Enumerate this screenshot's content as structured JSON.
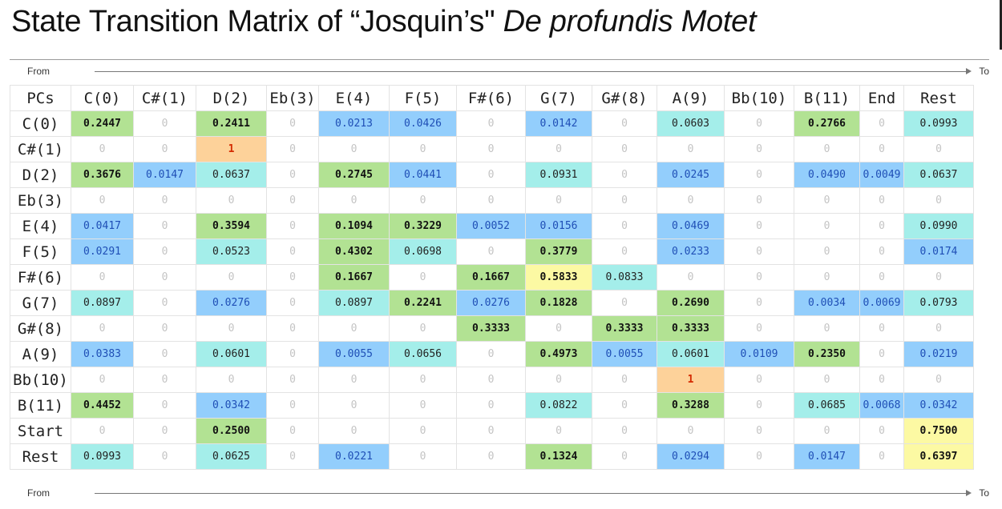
{
  "title": {
    "main": "State Transition Matrix of “Josquin’s\" ",
    "italic": "De profundis Motet"
  },
  "axis": {
    "from": "From",
    "to": "To"
  },
  "corner": "PCs",
  "columns": [
    "C(0)",
    "C#(1)",
    "D(2)",
    "Eb(3)",
    "E(4)",
    "F(5)",
    "F#(6)",
    "G(7)",
    "G#(8)",
    "A(9)",
    "Bb(10)",
    "B(11)",
    "End",
    "Rest"
  ],
  "rows": [
    {
      "label": "C(0)",
      "cells": [
        "0.2447",
        "0",
        "0.2411",
        "0",
        "0.0213",
        "0.0426",
        "0",
        "0.0142",
        "0",
        "0.0603",
        "0",
        "0.2766",
        "0",
        "0.0993"
      ]
    },
    {
      "label": "C#(1)",
      "cells": [
        "0",
        "0",
        "1",
        "0",
        "0",
        "0",
        "0",
        "0",
        "0",
        "0",
        "0",
        "0",
        "0",
        "0"
      ]
    },
    {
      "label": "D(2)",
      "cells": [
        "0.3676",
        "0.0147",
        "0.0637",
        "0",
        "0.2745",
        "0.0441",
        "0",
        "0.0931",
        "0",
        "0.0245",
        "0",
        "0.0490",
        "0.0049",
        "0.0637"
      ]
    },
    {
      "label": "Eb(3)",
      "cells": [
        "0",
        "0",
        "0",
        "0",
        "0",
        "0",
        "0",
        "0",
        "0",
        "0",
        "0",
        "0",
        "0",
        "0"
      ]
    },
    {
      "label": "E(4)",
      "cells": [
        "0.0417",
        "0",
        "0.3594",
        "0",
        "0.1094",
        "0.3229",
        "0.0052",
        "0.0156",
        "0",
        "0.0469",
        "0",
        "0",
        "0",
        "0.0990"
      ]
    },
    {
      "label": "F(5)",
      "cells": [
        "0.0291",
        "0",
        "0.0523",
        "0",
        "0.4302",
        "0.0698",
        "0",
        "0.3779",
        "0",
        "0.0233",
        "0",
        "0",
        "0",
        "0.0174"
      ]
    },
    {
      "label": "F#(6)",
      "cells": [
        "0",
        "0",
        "0",
        "0",
        "0.1667",
        "0",
        "0.1667",
        "0.5833",
        "0.0833",
        "0",
        "0",
        "0",
        "0",
        "0"
      ]
    },
    {
      "label": "G(7)",
      "cells": [
        "0.0897",
        "0",
        "0.0276",
        "0",
        "0.0897",
        "0.2241",
        "0.0276",
        "0.1828",
        "0",
        "0.2690",
        "0",
        "0.0034",
        "0.0069",
        "0.0793"
      ]
    },
    {
      "label": "G#(8)",
      "cells": [
        "0",
        "0",
        "0",
        "0",
        "0",
        "0",
        "0.3333",
        "0",
        "0.3333",
        "0.3333",
        "0",
        "0",
        "0",
        "0"
      ]
    },
    {
      "label": "A(9)",
      "cells": [
        "0.0383",
        "0",
        "0.0601",
        "0",
        "0.0055",
        "0.0656",
        "0",
        "0.4973",
        "0.0055",
        "0.0601",
        "0.0109",
        "0.2350",
        "0",
        "0.0219"
      ]
    },
    {
      "label": "Bb(10)",
      "cells": [
        "0",
        "0",
        "0",
        "0",
        "0",
        "0",
        "0",
        "0",
        "0",
        "1",
        "0",
        "0",
        "0",
        "0"
      ]
    },
    {
      "label": "B(11)",
      "cells": [
        "0.4452",
        "0",
        "0.0342",
        "0",
        "0",
        "0",
        "0",
        "0.0822",
        "0",
        "0.3288",
        "0",
        "0.0685",
        "0.0068",
        "0.0342"
      ]
    },
    {
      "label": "Start",
      "cells": [
        "0",
        "0",
        "0.2500",
        "0",
        "0",
        "0",
        "0",
        "0",
        "0",
        "0",
        "0",
        "0",
        "0",
        "0.7500"
      ]
    },
    {
      "label": "Rest",
      "cells": [
        "0.0993",
        "0",
        "0.0625",
        "0",
        "0.0221",
        "0",
        "0",
        "0.1324",
        "0",
        "0.0294",
        "0",
        "0.0147",
        "0",
        "0.6397"
      ]
    }
  ],
  "colors": {
    "blue": "#93cefc",
    "turquoise": "#a4eeea",
    "green": "#b2e293",
    "yellow": "#fcf9a3",
    "orange": "#fdd29a"
  }
}
